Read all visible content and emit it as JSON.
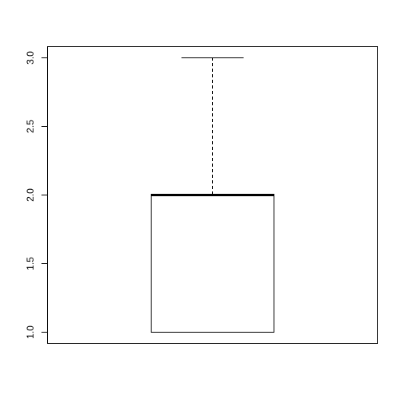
{
  "chart_data": {
    "type": "box",
    "title": "",
    "xlabel": "",
    "ylabel": "",
    "ylim": [
      0.96,
      3.04
    ],
    "y_ticks": [
      "1.0",
      "1.5",
      "2.0",
      "2.5",
      "3.0"
    ],
    "y_tick_values": [
      1.0,
      1.5,
      2.0,
      2.5,
      3.0
    ],
    "box": {
      "min": 1.0,
      "q1": 1.0,
      "median": 2.0,
      "q3": 2.0,
      "max": 3.0
    },
    "grid": false,
    "legend": "none",
    "colors": {
      "stroke": "#000000",
      "fill": "#ffffff",
      "background": "#ffffff"
    }
  }
}
